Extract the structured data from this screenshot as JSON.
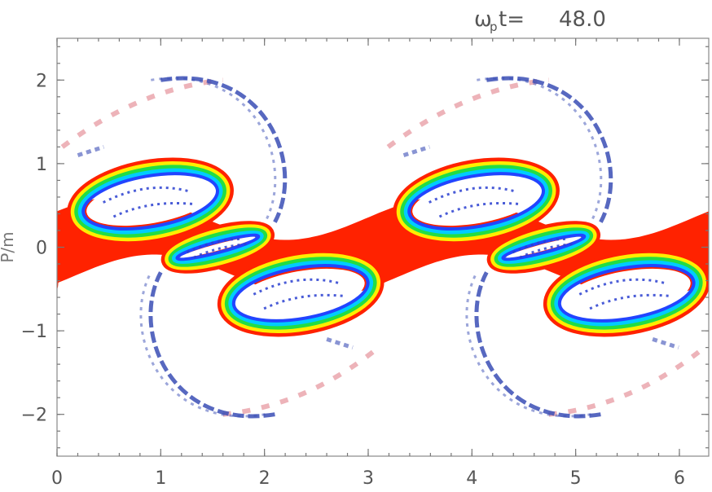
{
  "chart_data": {
    "type": "heatmap",
    "title": {
      "symbol": "ω",
      "subscript": "p",
      "suffix": "t=",
      "value": "48.0"
    },
    "xlim": [
      0,
      6.283
    ],
    "ylim": [
      -2.5,
      2.5
    ],
    "x_ticks": [
      "0",
      "1",
      "2",
      "3",
      "4",
      "5",
      "6"
    ],
    "y_ticks": [
      "−2",
      "−1",
      "0",
      "1",
      "2"
    ],
    "ylabel_fragment": "P/m",
    "period": 3.1416,
    "colors": {
      "core": "#ff2200",
      "ring": [
        "#ff2200",
        "#ffee00",
        "#22dd44",
        "#00ccff",
        "#2244ff"
      ],
      "arcs": "#3a4db5",
      "faint": "#e8a0a8",
      "hole": "#ffffff",
      "frame": "#888888"
    }
  }
}
